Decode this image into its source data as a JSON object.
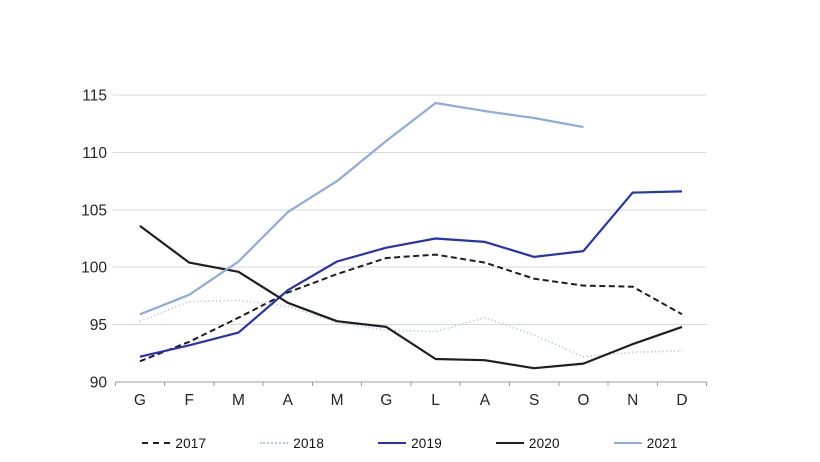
{
  "chart_data": {
    "type": "line",
    "categories": [
      "G",
      "F",
      "M",
      "A",
      "M",
      "G",
      "L",
      "A",
      "S",
      "O",
      "N",
      "D"
    ],
    "series": [
      {
        "name": "2017",
        "style": "dashed",
        "color": "#1f1f1f",
        "values": [
          91.8,
          93.5,
          95.6,
          97.8,
          99.4,
          100.8,
          101.1,
          100.4,
          99.0,
          98.4,
          98.3,
          95.9
        ]
      },
      {
        "name": "2018",
        "style": "dotted",
        "color": "#b6c7e8",
        "values": [
          95.3,
          97.0,
          97.1,
          96.6,
          95.2,
          94.5,
          94.4,
          95.6,
          94.1,
          92.2,
          92.6,
          92.7
        ]
      },
      {
        "name": "2019",
        "style": "solid",
        "color": "#2633b0",
        "values": [
          92.2,
          93.2,
          94.3,
          98.0,
          100.5,
          101.7,
          102.5,
          102.2,
          100.9,
          101.4,
          106.5,
          106.6
        ]
      },
      {
        "name": "2020",
        "style": "solid",
        "color": "#1f1f1f",
        "values": [
          103.6,
          100.4,
          99.6,
          96.9,
          95.3,
          94.8,
          92.0,
          91.9,
          91.2,
          91.6,
          93.3,
          94.8
        ]
      },
      {
        "name": "2021",
        "style": "solid",
        "color": "#8faadc",
        "values": [
          95.9,
          97.6,
          100.5,
          104.8,
          107.5,
          111.0,
          114.3,
          113.6,
          113.0,
          112.2,
          null,
          null
        ]
      }
    ],
    "title": "",
    "xlabel": "",
    "ylabel": "",
    "ylim": [
      90,
      115
    ],
    "y_tick_step": 5,
    "y_tick_labels": [
      "90",
      "95",
      "100",
      "105",
      "110",
      "115"
    ],
    "grid": "horizontal",
    "legend_position": "bottom",
    "colors": {
      "gridline": "#d9d9d9",
      "axis_line": "#9b9b9b",
      "tick_label": "#262626"
    }
  }
}
